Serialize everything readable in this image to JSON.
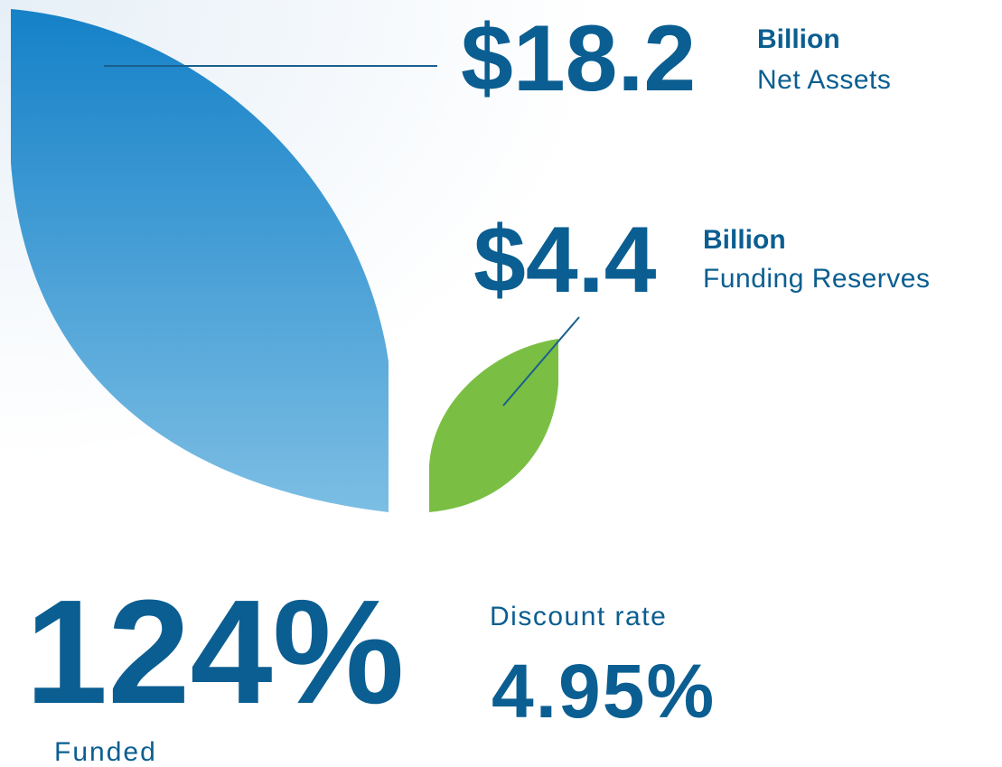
{
  "net_assets": {
    "amount": "$18.2",
    "unit": "Billion",
    "label": "Net Assets"
  },
  "funding_reserves": {
    "amount": "$4.4",
    "unit": "Billion",
    "label": "Funding Reserves"
  },
  "funded": {
    "amount": "124%",
    "label": "Funded"
  },
  "discount_rate": {
    "label": "Discount rate",
    "amount": "4.95%"
  }
}
